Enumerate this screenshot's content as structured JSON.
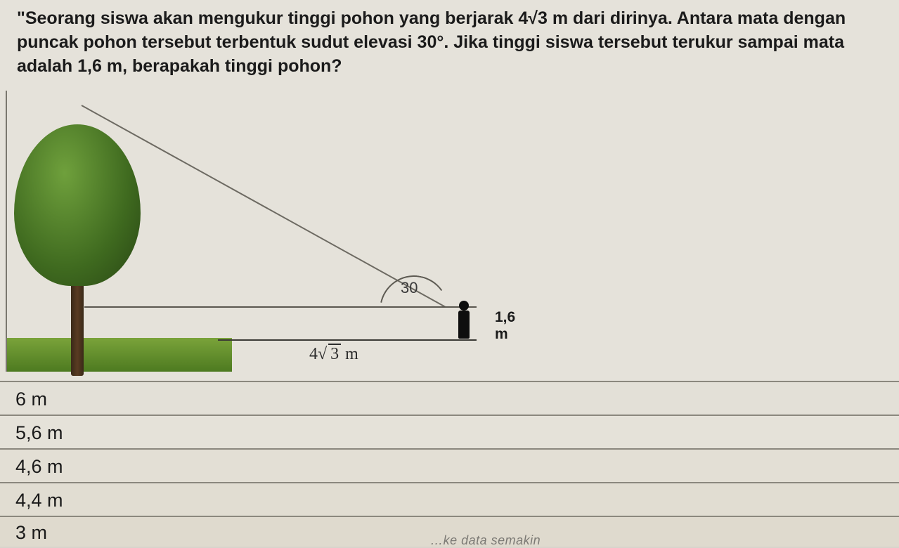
{
  "question": {
    "text": "\"Seorang siswa akan mengukur tinggi pohon yang berjarak 4√3 m dari dirinya. Antara mata dengan puncak pohon tersebut terbentuk sudut elevasi 30°. Jika tinggi siswa tersebut terukur sampai mata adalah 1,6 m, berapakah tinggi pohon?"
  },
  "diagram": {
    "angle_label": "30",
    "person_height": "1,6 m",
    "distance_num": "4",
    "distance_rad": "3",
    "distance_unit": " m",
    "colors": {
      "grass_top": "#7aa33a",
      "grass_bottom": "#4d7a20",
      "trunk": "#5a3b22",
      "canopy_light": "#6fa03c",
      "canopy_mid": "#3f6a1f",
      "canopy_dark": "#284514",
      "line": "#5a574f",
      "background": "#e5e2da"
    }
  },
  "options": [
    "6 m",
    "5,6 m",
    "4,6 m",
    "4,4 m",
    "3 m"
  ],
  "footer_fragment": "…ke data semakin"
}
